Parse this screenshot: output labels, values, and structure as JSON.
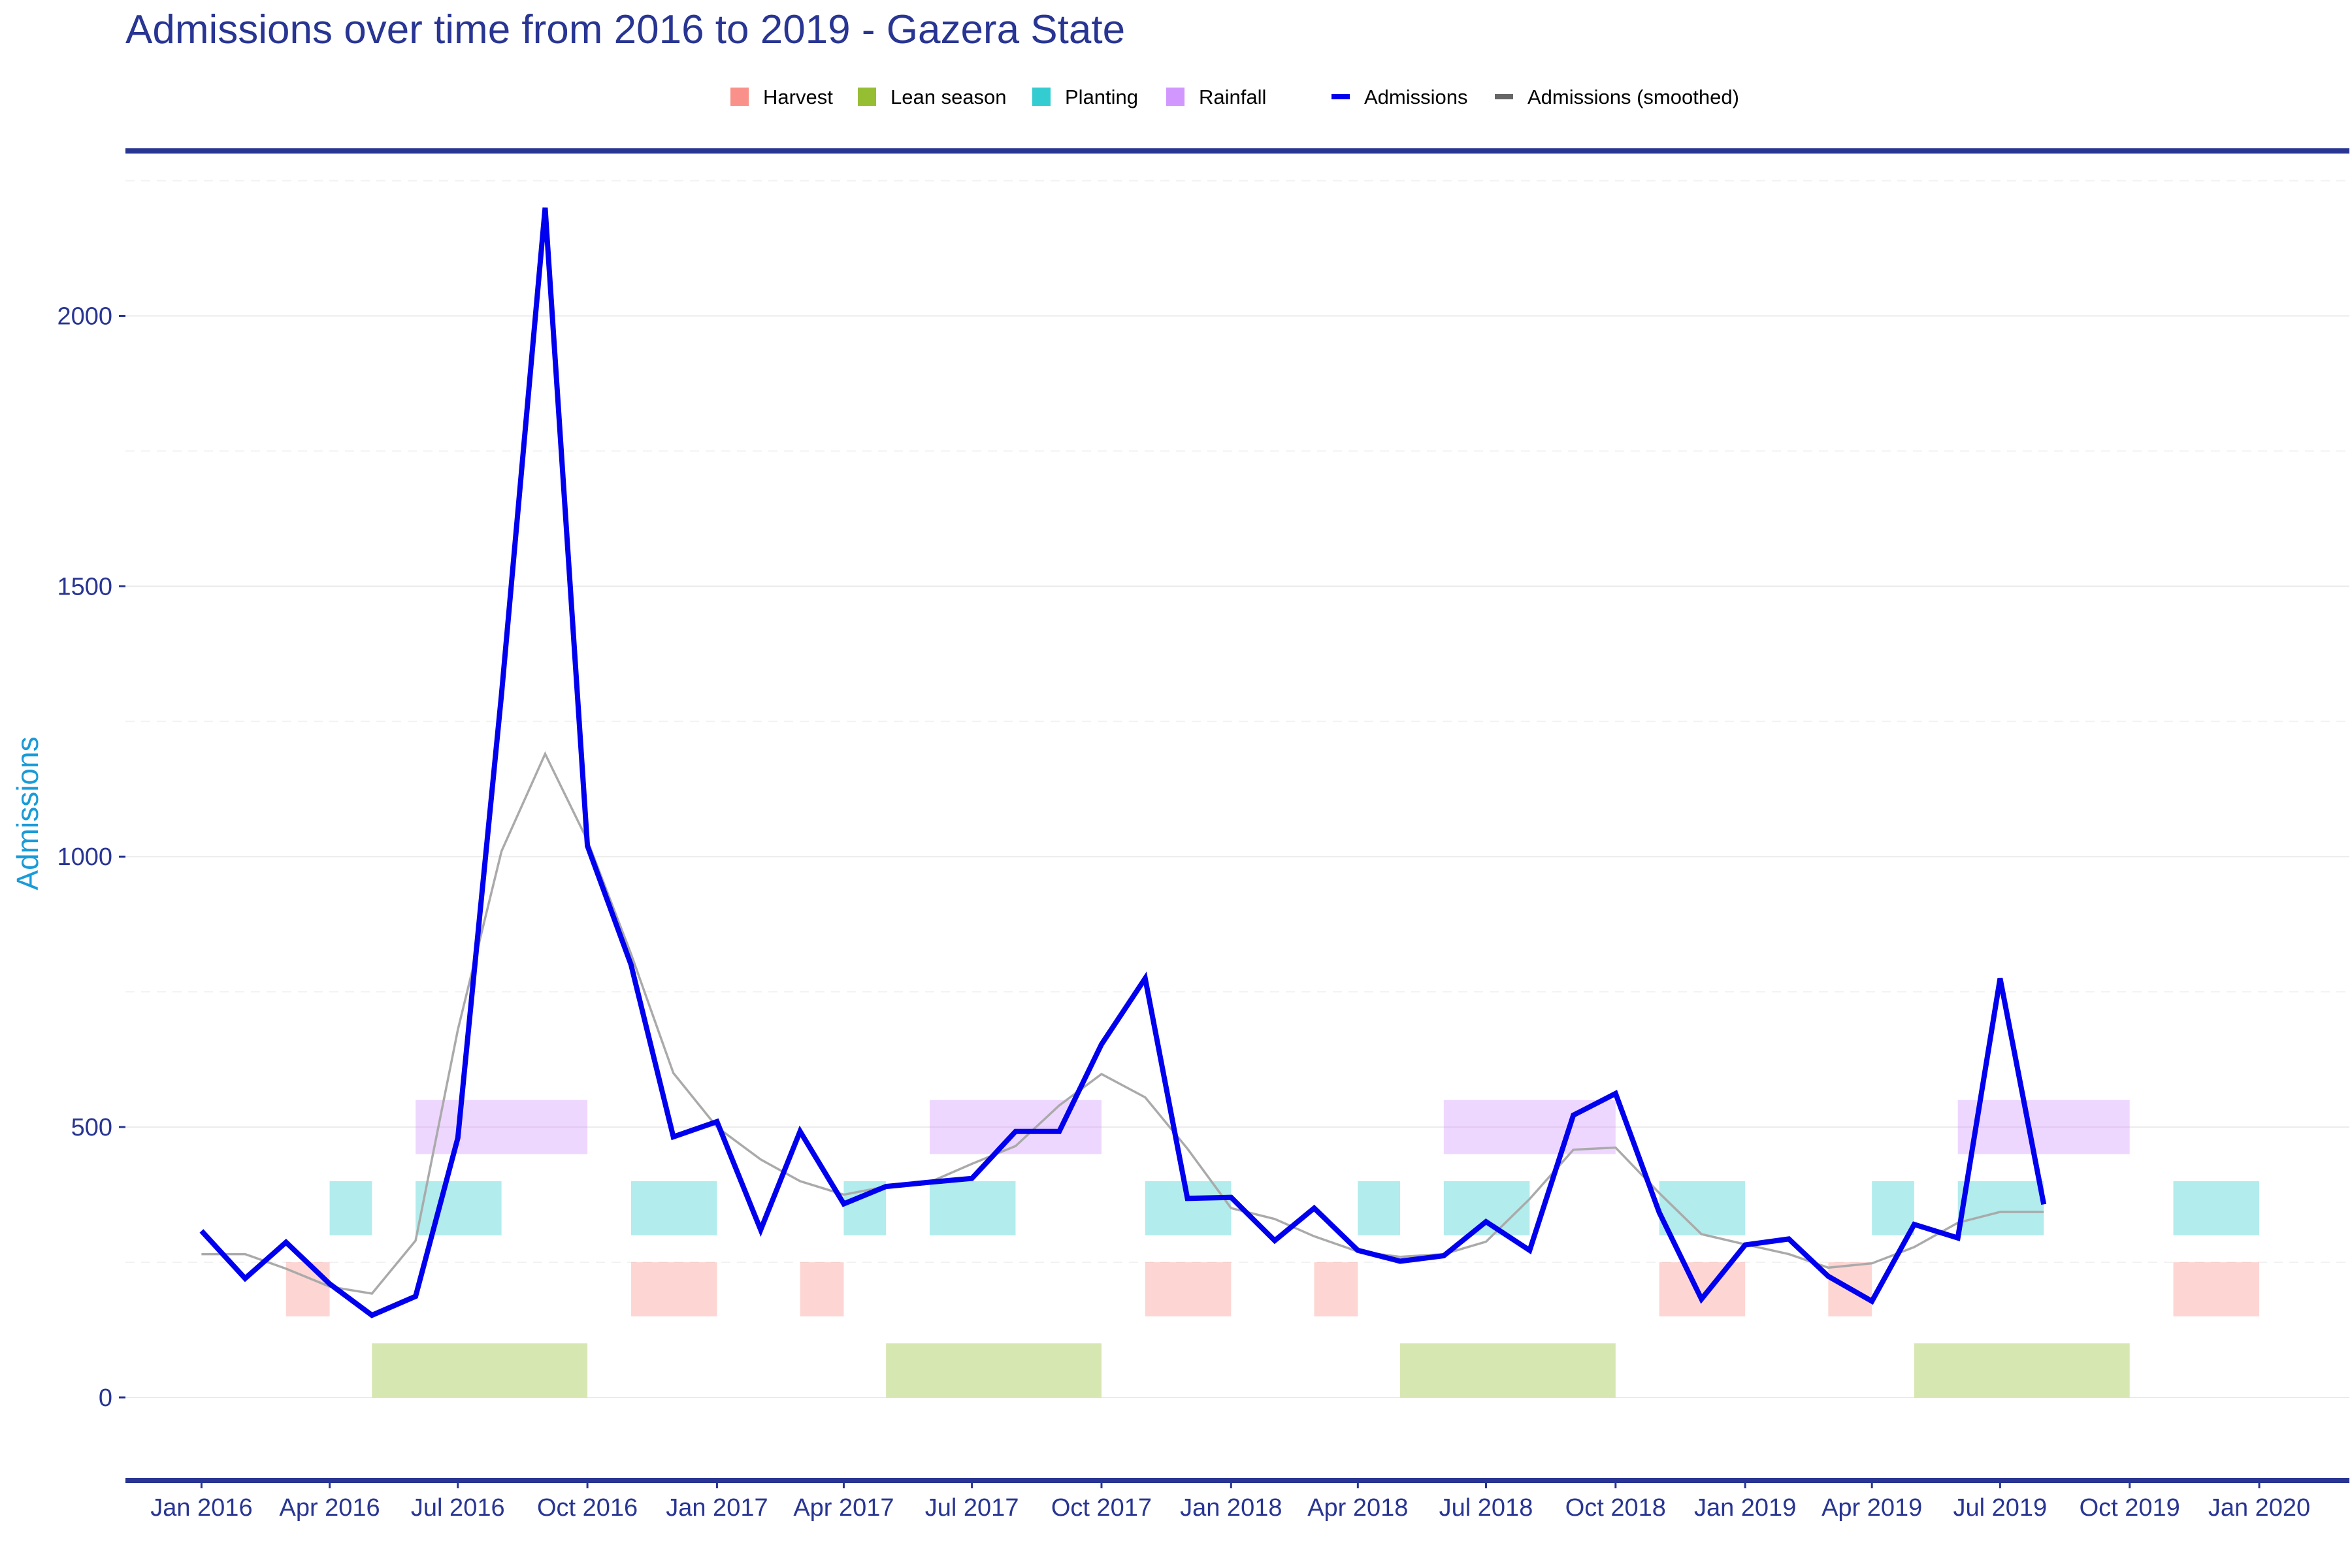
{
  "chart_data": {
    "type": "line",
    "title": "Admissions over time from 2016 to 2019 - Gazera State",
    "ylabel": "Admissions",
    "xlabel": "",
    "ylim": [
      -110,
      2270
    ],
    "xlim": [
      "2015-11-08",
      "2020-03-05"
    ],
    "grid": true,
    "legend_position": "top",
    "x_ticks": [
      {
        "date": "2016-01-01",
        "label": "Jan 2016"
      },
      {
        "date": "2016-04-01",
        "label": "Apr 2016"
      },
      {
        "date": "2016-07-01",
        "label": "Jul 2016"
      },
      {
        "date": "2016-10-01",
        "label": "Oct 2016"
      },
      {
        "date": "2017-01-01",
        "label": "Jan 2017"
      },
      {
        "date": "2017-04-01",
        "label": "Apr 2017"
      },
      {
        "date": "2017-07-01",
        "label": "Jul 2017"
      },
      {
        "date": "2017-10-01",
        "label": "Oct 2017"
      },
      {
        "date": "2018-01-01",
        "label": "Jan 2018"
      },
      {
        "date": "2018-04-01",
        "label": "Apr 2018"
      },
      {
        "date": "2018-07-01",
        "label": "Jul 2018"
      },
      {
        "date": "2018-10-01",
        "label": "Oct 2018"
      },
      {
        "date": "2019-01-01",
        "label": "Jan 2019"
      },
      {
        "date": "2019-04-01",
        "label": "Apr 2019"
      },
      {
        "date": "2019-07-01",
        "label": "Jul 2019"
      },
      {
        "date": "2019-10-01",
        "label": "Oct 2019"
      },
      {
        "date": "2020-01-01",
        "label": "Jan 2020"
      }
    ],
    "y_ticks": [
      {
        "value": 0,
        "label": "0"
      },
      {
        "value": 500,
        "label": "500"
      },
      {
        "value": 1000,
        "label": "1000"
      },
      {
        "value": 1500,
        "label": "1500"
      },
      {
        "value": 2000,
        "label": "2000"
      }
    ],
    "y_minor_gridlines": [
      250,
      750,
      1250,
      1750,
      2250
    ],
    "x": [
      "2016-01-01",
      "2016-02-01",
      "2016-03-01",
      "2016-04-01",
      "2016-05-01",
      "2016-06-01",
      "2016-07-01",
      "2016-08-01",
      "2016-09-01",
      "2016-10-01",
      "2016-11-01",
      "2016-12-01",
      "2017-01-01",
      "2017-02-01",
      "2017-03-01",
      "2017-04-01",
      "2017-05-01",
      "2017-06-01",
      "2017-07-01",
      "2017-08-01",
      "2017-09-01",
      "2017-10-01",
      "2017-11-01",
      "2017-12-01",
      "2018-01-01",
      "2018-02-01",
      "2018-03-01",
      "2018-04-01",
      "2018-05-01",
      "2018-06-01",
      "2018-07-01",
      "2018-08-01",
      "2018-09-01",
      "2018-10-01",
      "2018-11-01",
      "2018-12-01",
      "2019-01-01",
      "2019-02-01",
      "2019-03-01",
      "2019-04-01",
      "2019-05-01",
      "2019-06-01",
      "2019-07-01",
      "2019-08-01"
    ],
    "series": [
      {
        "name": "Admissions",
        "color": "#0000ee",
        "values": [
          308,
          220,
          287,
          210,
          152,
          187,
          480,
          1300,
          2200,
          1020,
          800,
          482,
          510,
          310,
          492,
          358,
          390,
          398,
          405,
          492,
          492,
          653,
          775,
          368,
          370,
          290,
          350,
          272,
          252,
          262,
          325,
          272,
          522,
          562,
          342,
          182,
          282,
          293,
          224,
          178,
          320,
          295,
          775,
          357
        ]
      },
      {
        "name": "Admissions (smoothed)",
        "color": "#aaaaaa",
        "values": [
          265,
          265,
          238,
          205,
          192,
          290,
          680,
          1010,
          1190,
          1030,
          820,
          600,
          500,
          440,
          400,
          375,
          390,
          398,
          432,
          465,
          540,
          598,
          555,
          460,
          350,
          330,
          298,
          270,
          260,
          265,
          288,
          367,
          458,
          462,
          378,
          302,
          283,
          265,
          240,
          248,
          278,
          323,
          343,
          343
        ]
      }
    ],
    "seasons": [
      {
        "name": "Harvest",
        "color": "#f8766d",
        "band": [
          150,
          250
        ],
        "periods": [
          [
            "2016-03-01",
            "2016-04-01"
          ],
          [
            "2016-11-01",
            "2017-01-01"
          ],
          [
            "2017-03-01",
            "2017-04-01"
          ],
          [
            "2017-11-01",
            "2018-01-01"
          ],
          [
            "2018-03-01",
            "2018-04-01"
          ],
          [
            "2018-11-01",
            "2019-01-01"
          ],
          [
            "2019-03-01",
            "2019-04-01"
          ],
          [
            "2019-11-01",
            "2020-01-01"
          ]
        ]
      },
      {
        "name": "Lean season",
        "color": "#7cae00",
        "band": [
          0,
          100
        ],
        "periods": [
          [
            "2016-05-01",
            "2016-10-01"
          ],
          [
            "2017-05-01",
            "2017-10-01"
          ],
          [
            "2018-05-01",
            "2018-10-01"
          ],
          [
            "2019-05-01",
            "2019-10-01"
          ]
        ]
      },
      {
        "name": "Planting",
        "color": "#00bfc4",
        "band": [
          300,
          400
        ],
        "periods": [
          [
            "2016-04-01",
            "2016-05-01"
          ],
          [
            "2016-06-01",
            "2016-08-01"
          ],
          [
            "2016-11-01",
            "2017-01-01"
          ],
          [
            "2017-04-01",
            "2017-05-01"
          ],
          [
            "2017-06-01",
            "2017-08-01"
          ],
          [
            "2017-11-01",
            "2018-01-01"
          ],
          [
            "2018-04-01",
            "2018-05-01"
          ],
          [
            "2018-06-01",
            "2018-08-01"
          ],
          [
            "2018-11-01",
            "2019-01-01"
          ],
          [
            "2019-04-01",
            "2019-05-01"
          ],
          [
            "2019-06-01",
            "2019-08-01"
          ],
          [
            "2019-11-01",
            "2020-01-01"
          ]
        ]
      },
      {
        "name": "Rainfall",
        "color": "#c77cff",
        "band": [
          450,
          550
        ],
        "periods": [
          [
            "2016-06-01",
            "2016-10-01"
          ],
          [
            "2017-06-01",
            "2017-10-01"
          ],
          [
            "2018-06-01",
            "2018-10-01"
          ],
          [
            "2019-06-01",
            "2019-10-01"
          ]
        ]
      }
    ]
  },
  "colors": {
    "title": "#283593",
    "axis_text": "#283593",
    "y_axis_title": "#1a9bd7",
    "frame_line": "#283593",
    "grid_major": "#ebebeb",
    "grid_minor": "#f2f2f2"
  }
}
